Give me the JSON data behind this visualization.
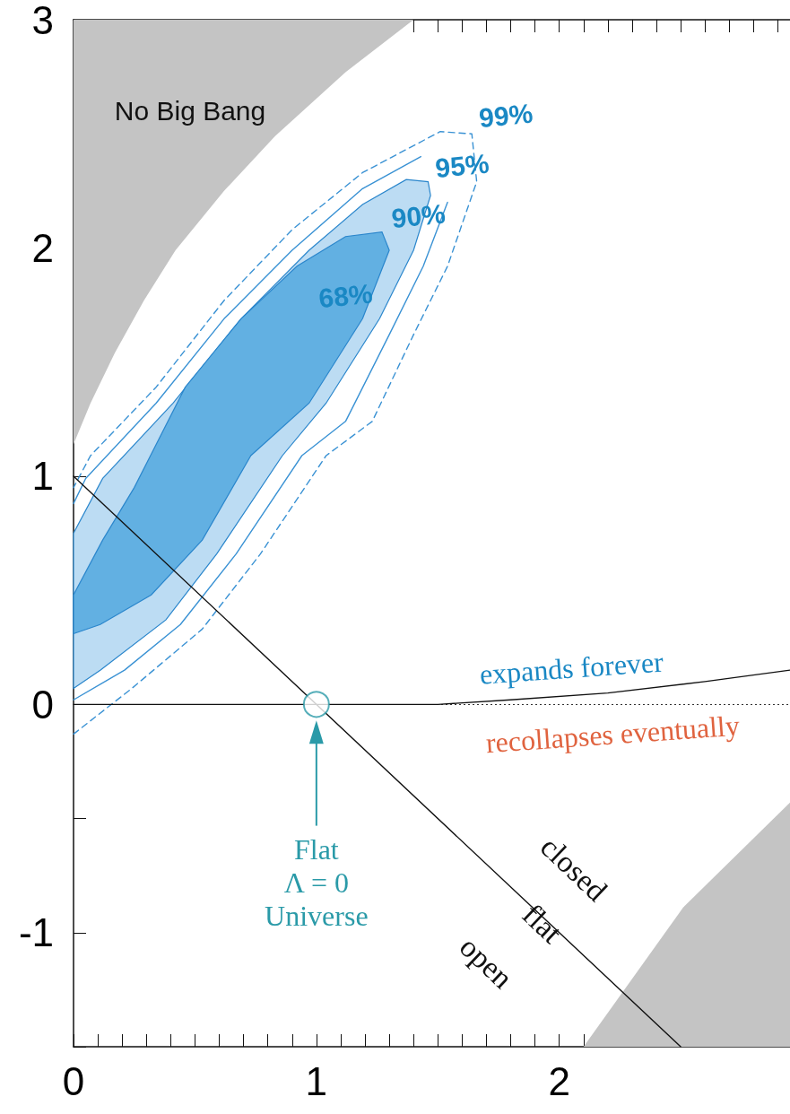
{
  "chart_data": {
    "type": "line",
    "grid": false,
    "xlim": [
      0,
      2.95
    ],
    "ylim": [
      -1.5,
      3
    ],
    "xticks": [
      0,
      {
        "value": 0.1,
        "label": null
      },
      {
        "value": 0.2,
        "label": null
      },
      {
        "value": 0.3,
        "label": null
      },
      {
        "value": 0.4,
        "label": null
      },
      {
        "value": 0.5,
        "label": null
      },
      {
        "value": 0.6,
        "label": null
      },
      {
        "value": 0.7,
        "label": null
      },
      {
        "value": 0.8,
        "label": null
      },
      {
        "value": 0.9,
        "label": null
      },
      1,
      {
        "value": 1.1,
        "label": null
      },
      {
        "value": 1.2,
        "label": null
      },
      {
        "value": 1.3,
        "label": null
      },
      {
        "value": 1.4,
        "label": null
      },
      {
        "value": 1.5,
        "label": null
      },
      {
        "value": 1.6,
        "label": null
      },
      {
        "value": 1.7,
        "label": null
      },
      {
        "value": 1.8,
        "label": null
      },
      {
        "value": 1.9,
        "label": null
      },
      2,
      {
        "value": 2.1,
        "label": null
      },
      {
        "value": 2.2,
        "label": null
      },
      {
        "value": 2.3,
        "label": null
      },
      {
        "value": 2.4,
        "label": null
      },
      {
        "value": 2.5,
        "label": null
      },
      {
        "value": 2.6,
        "label": null
      },
      {
        "value": 2.7,
        "label": null
      },
      {
        "value": 2.8,
        "label": null
      },
      {
        "value": 2.9,
        "label": null
      }
    ],
    "yticks": [
      {
        "value": -1.5,
        "label": null
      },
      -1,
      {
        "value": -0.5,
        "label": null
      },
      0,
      {
        "value": 0.5,
        "label": null
      },
      1,
      {
        "value": 1.5,
        "label": null
      },
      2,
      {
        "value": 2.5,
        "label": null
      },
      3
    ],
    "ref_lines": [
      {
        "axis": "y",
        "value": 0,
        "line_style": "dotted",
        "color": "#333333"
      }
    ],
    "series": [
      {
        "type": "area",
        "color": "#c4c4c4",
        "x": [
          0,
          0.07,
          0.17,
          0.29,
          0.42,
          0.62,
          0.83,
          1.12,
          1.4,
          0
        ],
        "values": [
          1.14,
          1.32,
          1.54,
          1.77,
          1.99,
          2.25,
          2.49,
          2.77,
          3.0,
          3.0
        ]
      },
      {
        "type": "area",
        "color": "#c4c4c4",
        "x": [
          2.1,
          2.51,
          2.95,
          2.95
        ],
        "values": [
          -1.5,
          -0.89,
          -0.43,
          -1.5
        ]
      },
      {
        "color": "#3a92d4",
        "line_style": "dashed",
        "x": [
          0,
          0.24,
          0.53,
          0.77,
          1.04,
          1.23,
          1.4,
          1.54,
          1.66,
          1.64,
          1.51,
          1.19,
          0.9,
          0.62,
          0.34,
          0.07,
          0
        ],
        "values": [
          -0.13,
          0.07,
          0.33,
          0.66,
          1.09,
          1.24,
          1.62,
          1.92,
          2.29,
          2.5,
          2.51,
          2.33,
          2.08,
          1.77,
          1.39,
          1.09,
          0.95
        ]
      },
      {
        "color": "#3a92d4",
        "line_style": "solid",
        "x": [
          0,
          0.21,
          0.44,
          0.67,
          0.94,
          1.12,
          1.3,
          1.44,
          1.54,
          1.5,
          1.43,
          1.19,
          0.9,
          0.62,
          0.34,
          0.05,
          0
        ],
        "values": [
          0.02,
          0.15,
          0.35,
          0.66,
          1.09,
          1.24,
          1.62,
          1.92,
          2.2,
          null,
          2.4,
          2.26,
          1.99,
          1.69,
          1.32,
          0.99,
          0.88
        ]
      },
      {
        "type": "area",
        "color": "#bcdcf3",
        "x": [
          0,
          0.11,
          0.38,
          0.59,
          0.86,
          1.04,
          1.26,
          1.4,
          1.47,
          1.46,
          1.37,
          1.19,
          0.97,
          0.69,
          0.41,
          0.12,
          0
        ],
        "values": [
          0.07,
          0.15,
          0.37,
          0.66,
          1.09,
          1.32,
          1.69,
          1.99,
          2.23,
          2.29,
          2.3,
          2.19,
          1.99,
          1.69,
          1.32,
          0.99,
          0.75
        ]
      },
      {
        "type": "area",
        "color": "#62b0e2",
        "x": [
          0,
          0.11,
          0.32,
          0.53,
          0.73,
          0.97,
          1.19,
          1.3,
          1.27,
          1.12,
          0.92,
          0.69,
          0.46,
          0.25,
          0.12,
          0
        ],
        "values": [
          0.31,
          0.35,
          0.48,
          0.72,
          1.09,
          1.32,
          1.69,
          1.99,
          2.07,
          2.05,
          1.92,
          1.69,
          1.39,
          0.95,
          0.72,
          0.48
        ]
      },
      {
        "color": "#111111",
        "line_style": "solid",
        "x": [
          0,
          2.5
        ],
        "values": [
          1,
          -1.5
        ]
      },
      {
        "color": "#111111",
        "line_style": "solid",
        "x": [
          0,
          1,
          1.5,
          1.8,
          2.2,
          2.6,
          2.95
        ],
        "values": [
          0,
          0,
          0,
          0.02,
          0.05,
          0.1,
          0.15
        ]
      },
      {
        "type": "scatter",
        "color": "#2a9aa8",
        "marker": "circle",
        "x": [
          1
        ],
        "values": [
          0
        ]
      }
    ],
    "annotations": [
      "No Big Bang",
      "99%",
      "95%",
      "90%",
      "68%",
      "expands forever",
      "recollapses eventually",
      "Flat\nΛ = 0\nUniverse",
      "closed",
      "flat",
      "open"
    ]
  }
}
